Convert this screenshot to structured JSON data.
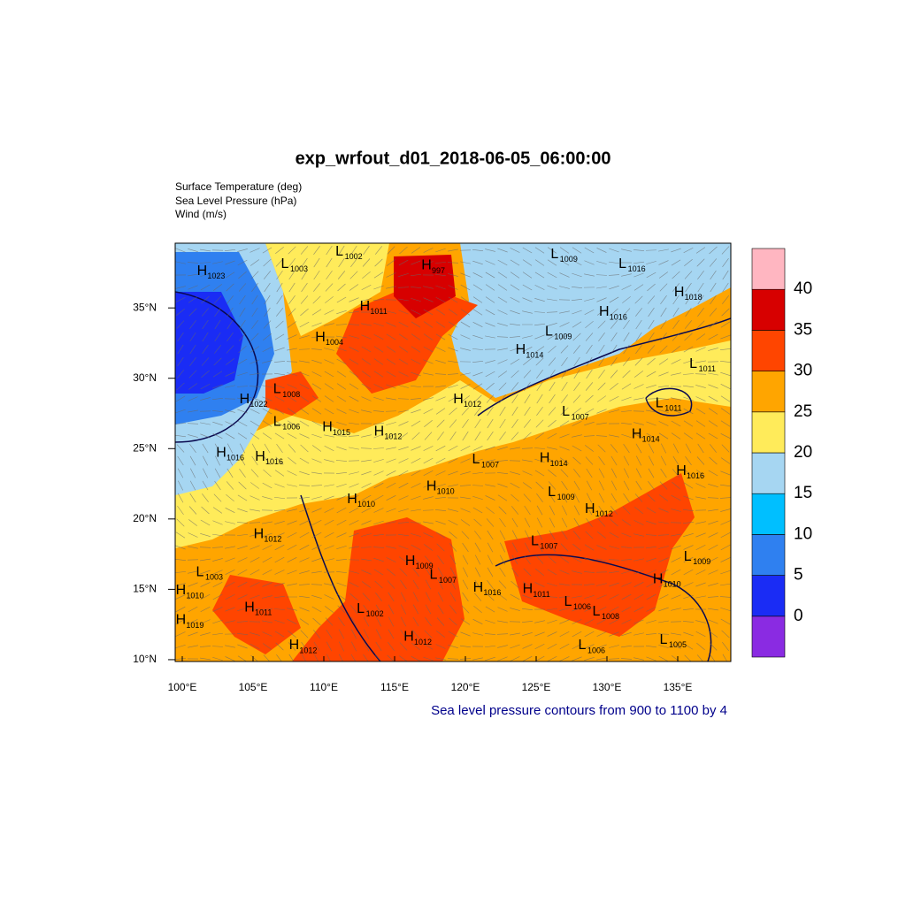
{
  "title": "exp_wrfout_d01_2018-06-05_06:00:00",
  "fields": [
    "Surface Temperature (deg)",
    "Sea Level Pressure (hPa)",
    "Wind (m/s)"
  ],
  "map": {
    "lonlim": [
      99.5,
      138.75
    ],
    "latlim": [
      9.87,
      39.6
    ],
    "lon_ticks": [
      {
        "value": 100,
        "label": "100°E"
      },
      {
        "value": 105,
        "label": "105°E"
      },
      {
        "value": 110,
        "label": "110°E"
      },
      {
        "value": 115,
        "label": "115°E"
      },
      {
        "value": 120,
        "label": "120°E"
      },
      {
        "value": 125,
        "label": "125°E"
      },
      {
        "value": 130,
        "label": "130°E"
      },
      {
        "value": 135,
        "label": "135°E"
      }
    ],
    "lat_ticks": [
      {
        "value": 10,
        "label": "10°N"
      },
      {
        "value": 15,
        "label": "15°N"
      },
      {
        "value": 20,
        "label": "20°N"
      },
      {
        "value": 25,
        "label": "25°N"
      },
      {
        "value": 30,
        "label": "30°N"
      },
      {
        "value": 35,
        "label": "35°N"
      }
    ]
  },
  "colorbar": {
    "levels": [
      0,
      5,
      10,
      15,
      20,
      25,
      30,
      35,
      40
    ],
    "colors": [
      "#8a2be2",
      "#1a2cf5",
      "#2f80f0",
      "#00bfff",
      "#a6d6f2",
      "#ffeb5a",
      "#ffa500",
      "#ff4500",
      "#d70000",
      "#ffb6c1"
    ]
  },
  "pressure_centers": [
    {
      "type": "H",
      "value": 1023,
      "lon": 101.4,
      "lat": 37.6
    },
    {
      "type": "L",
      "value": 1003,
      "lon": 107.25,
      "lat": 38.1
    },
    {
      "type": "L",
      "value": 1002,
      "lon": 111.1,
      "lat": 39.0
    },
    {
      "type": "H",
      "value": 997,
      "lon": 117.25,
      "lat": 38.0
    },
    {
      "type": "L",
      "value": 1009,
      "lon": 126.3,
      "lat": 38.8
    },
    {
      "type": "L",
      "value": 1016,
      "lon": 131.1,
      "lat": 38.1
    },
    {
      "type": "H",
      "value": 1018,
      "lon": 135.1,
      "lat": 36.1
    },
    {
      "type": "H",
      "value": 1011,
      "lon": 112.9,
      "lat": 35.1
    },
    {
      "type": "H",
      "value": 1016,
      "lon": 129.8,
      "lat": 34.7
    },
    {
      "type": "H",
      "value": 1004,
      "lon": 109.75,
      "lat": 32.9
    },
    {
      "type": "L",
      "value": 1009,
      "lon": 125.9,
      "lat": 33.3
    },
    {
      "type": "H",
      "value": 1014,
      "lon": 123.9,
      "lat": 32.0
    },
    {
      "type": "L",
      "value": 1011,
      "lon": 136.1,
      "lat": 31.0
    },
    {
      "type": "L",
      "value": 1008,
      "lon": 106.7,
      "lat": 29.2
    },
    {
      "type": "H",
      "value": 1022,
      "lon": 104.4,
      "lat": 28.5
    },
    {
      "type": "H",
      "value": 1012,
      "lon": 119.5,
      "lat": 28.5
    },
    {
      "type": "L",
      "value": 1007,
      "lon": 127.1,
      "lat": 27.6
    },
    {
      "type": "L",
      "value": 1011,
      "lon": 133.7,
      "lat": 28.2
    },
    {
      "type": "L",
      "value": 1006,
      "lon": 106.7,
      "lat": 26.9
    },
    {
      "type": "H",
      "value": 1015,
      "lon": 110.25,
      "lat": 26.5
    },
    {
      "type": "H",
      "value": 1012,
      "lon": 113.9,
      "lat": 26.2
    },
    {
      "type": "H",
      "value": 1014,
      "lon": 132.1,
      "lat": 26.0
    },
    {
      "type": "H",
      "value": 1016,
      "lon": 102.75,
      "lat": 24.7
    },
    {
      "type": "H",
      "value": 1016,
      "lon": 105.5,
      "lat": 24.4
    },
    {
      "type": "L",
      "value": 1007,
      "lon": 120.75,
      "lat": 24.2
    },
    {
      "type": "H",
      "value": 1014,
      "lon": 125.6,
      "lat": 24.3
    },
    {
      "type": "H",
      "value": 1016,
      "lon": 135.25,
      "lat": 23.4
    },
    {
      "type": "H",
      "value": 1010,
      "lon": 117.6,
      "lat": 22.3
    },
    {
      "type": "L",
      "value": 1009,
      "lon": 126.1,
      "lat": 21.9
    },
    {
      "type": "H",
      "value": 1010,
      "lon": 112.0,
      "lat": 21.4
    },
    {
      "type": "H",
      "value": 1012,
      "lon": 128.8,
      "lat": 20.7
    },
    {
      "type": "H",
      "value": 1012,
      "lon": 105.4,
      "lat": 18.9
    },
    {
      "type": "L",
      "value": 1007,
      "lon": 124.9,
      "lat": 18.4
    },
    {
      "type": "L",
      "value": 1009,
      "lon": 135.7,
      "lat": 17.3
    },
    {
      "type": "H",
      "value": 1009,
      "lon": 116.1,
      "lat": 17.0
    },
    {
      "type": "L",
      "value": 1007,
      "lon": 117.75,
      "lat": 16.0
    },
    {
      "type": "L",
      "value": 1003,
      "lon": 101.25,
      "lat": 16.2
    },
    {
      "type": "H",
      "value": 1010,
      "lon": 99.9,
      "lat": 14.9
    },
    {
      "type": "H",
      "value": 1016,
      "lon": 120.9,
      "lat": 15.1
    },
    {
      "type": "H",
      "value": 1011,
      "lon": 124.4,
      "lat": 15.0
    },
    {
      "type": "H",
      "value": 1010,
      "lon": 133.6,
      "lat": 15.7
    },
    {
      "type": "L",
      "value": 1006,
      "lon": 127.25,
      "lat": 14.1
    },
    {
      "type": "L",
      "value": 1008,
      "lon": 129.25,
      "lat": 13.4
    },
    {
      "type": "H",
      "value": 1011,
      "lon": 104.75,
      "lat": 13.7
    },
    {
      "type": "L",
      "value": 1002,
      "lon": 112.6,
      "lat": 13.6
    },
    {
      "type": "H",
      "value": 1019,
      "lon": 99.9,
      "lat": 12.8
    },
    {
      "type": "L",
      "value": 1005,
      "lon": 134.0,
      "lat": 11.4
    },
    {
      "type": "L",
      "value": 1006,
      "lon": 128.25,
      "lat": 11.0
    },
    {
      "type": "H",
      "value": 1012,
      "lon": 116.0,
      "lat": 11.6
    },
    {
      "type": "H",
      "value": 1012,
      "lon": 107.9,
      "lat": 11.0
    }
  ],
  "footer": "Sea level pressure contours from 900 to 1100 by 4"
}
